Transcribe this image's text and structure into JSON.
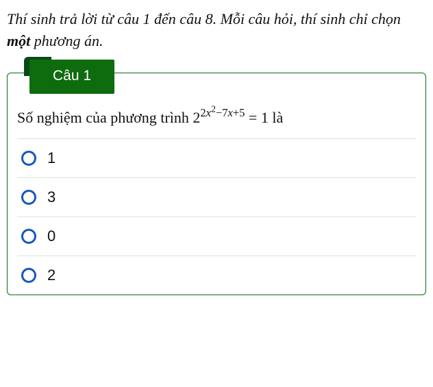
{
  "colors": {
    "card_border": "#0e6b0e",
    "option_border": "#d9e6d9",
    "radio_border": "#1557c0",
    "tab_bg": "#0e6b0e",
    "tab_shadow": "#0a4a17",
    "tab_text": "#ffffff"
  },
  "instructions": {
    "pre": "Thí sinh trả lời từ câu 1 đến câu 8. Mỗi câu hỏi, thí sinh chỉ chọn ",
    "bold": "một",
    "post": " phương án."
  },
  "question": {
    "tab_label": "Câu 1",
    "text_pre": "Số nghiệm của phương trình ",
    "eq_base": "2",
    "eq_exp_a": "2",
    "eq_exp_var1": "x",
    "eq_exp_sq": "2",
    "eq_exp_b": "−7",
    "eq_exp_var2": "x",
    "eq_exp_c": "+5",
    "eq_rhs": " = 1",
    "text_post": " là"
  },
  "options": [
    {
      "label": "1"
    },
    {
      "label": "3"
    },
    {
      "label": "0"
    },
    {
      "label": "2"
    }
  ]
}
